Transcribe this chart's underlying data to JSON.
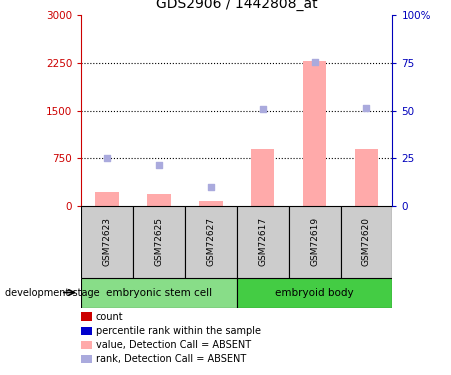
{
  "title": "GDS2906 / 1442808_at",
  "samples": [
    "GSM72623",
    "GSM72625",
    "GSM72627",
    "GSM72617",
    "GSM72619",
    "GSM72620"
  ],
  "groups": [
    {
      "name": "embryonic stem cell",
      "indices": [
        0,
        1,
        2
      ],
      "color": "#88DD88"
    },
    {
      "name": "embryoid body",
      "indices": [
        3,
        4,
        5
      ],
      "color": "#44CC44"
    }
  ],
  "bar_values": [
    220,
    200,
    80,
    900,
    2280,
    900
  ],
  "rank_values": [
    750,
    640,
    300,
    1530,
    2255,
    1535
  ],
  "ylim_left": [
    0,
    3000
  ],
  "ylim_right": [
    0,
    100
  ],
  "left_ticks": [
    0,
    750,
    1500,
    2250,
    3000
  ],
  "right_ticks": [
    0,
    25,
    50,
    75,
    100
  ],
  "left_tick_labels": [
    "0",
    "750",
    "1500",
    "2250",
    "3000"
  ],
  "right_tick_labels": [
    "0",
    "25",
    "50",
    "75",
    "100%"
  ],
  "bar_color": "#FFAAAA",
  "rank_color": "#AAAADD",
  "left_axis_color": "#CC0000",
  "right_axis_color": "#0000BB",
  "legend_items": [
    {
      "label": "count",
      "color": "#CC0000"
    },
    {
      "label": "percentile rank within the sample",
      "color": "#0000CC"
    },
    {
      "label": "value, Detection Call = ABSENT",
      "color": "#FFAAAA"
    },
    {
      "label": "rank, Detection Call = ABSENT",
      "color": "#AAAADD"
    }
  ],
  "background_label": "#CCCCCC",
  "background_group_light": "#88DD88",
  "background_group_dark": "#44CC44",
  "fig_width": 4.51,
  "fig_height": 3.75,
  "dpi": 100
}
